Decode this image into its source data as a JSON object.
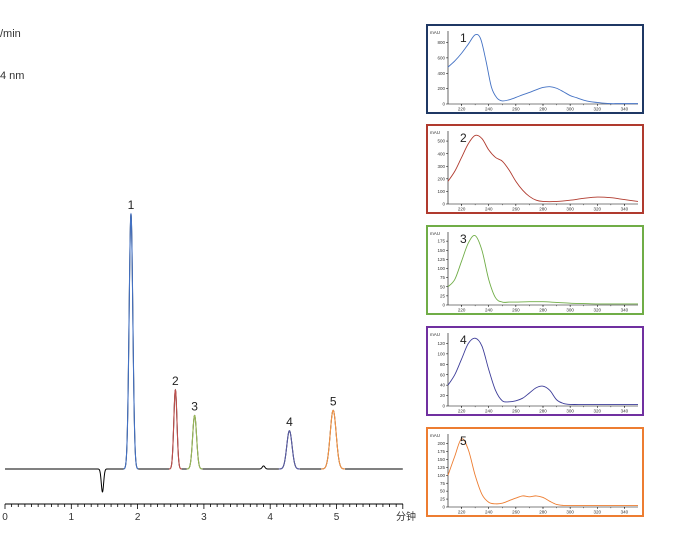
{
  "header_fragments": [
    "/min",
    "4 nm"
  ],
  "chart_data": [
    {
      "type": "line",
      "xunit": "分钟",
      "xlim": [
        0,
        6
      ],
      "xticks": [
        0,
        1,
        2,
        3,
        4,
        5
      ],
      "peaks": [
        {
          "label": "1",
          "rt": 1.9,
          "height": 1.0,
          "width": 0.028,
          "color": "#4472c4"
        },
        {
          "label": "2",
          "rt": 2.57,
          "height": 0.31,
          "width": 0.024,
          "color": "#c0504d"
        },
        {
          "label": "3",
          "rt": 2.86,
          "height": 0.21,
          "width": 0.03,
          "color": "#9bbb59"
        },
        {
          "label": "4",
          "rt": 4.29,
          "height": 0.15,
          "width": 0.04,
          "color": "#5b5ea6"
        },
        {
          "label": "5",
          "rt": 4.95,
          "height": 0.23,
          "width": 0.045,
          "color": "#f79646"
        }
      ],
      "baseline_color": "#000000"
    },
    {
      "type": "line",
      "label": "1",
      "color": "#4472c4",
      "border": "#1f3864",
      "xlim": [
        210,
        350
      ],
      "ylabel": "mAU",
      "yticks": [
        0,
        200,
        400,
        600,
        800
      ],
      "ylim": [
        0,
        950
      ],
      "xticks": [
        220,
        240,
        260,
        280,
        300,
        320,
        340
      ],
      "x": [
        210,
        215,
        220,
        225,
        230,
        234,
        238,
        242,
        246,
        250,
        255,
        260,
        265,
        270,
        275,
        280,
        285,
        290,
        295,
        300,
        305,
        310,
        315,
        320,
        325,
        330,
        335,
        340,
        345,
        350
      ],
      "y": [
        480,
        560,
        660,
        780,
        900,
        850,
        560,
        220,
        80,
        40,
        55,
        85,
        120,
        150,
        185,
        215,
        225,
        205,
        160,
        110,
        80,
        50,
        30,
        20,
        10,
        5,
        5,
        5,
        5,
        5
      ]
    },
    {
      "type": "line",
      "label": "2",
      "color": "#b03a2e",
      "border": "#b03a2e",
      "xlim": [
        210,
        350
      ],
      "ylabel": "mAU",
      "yticks": [
        0,
        100,
        200,
        300,
        400,
        500
      ],
      "ylim": [
        0,
        580
      ],
      "xticks": [
        220,
        240,
        260,
        280,
        300,
        320,
        340
      ],
      "x": [
        210,
        215,
        220,
        225,
        230,
        235,
        240,
        245,
        250,
        255,
        260,
        265,
        270,
        275,
        280,
        290,
        300,
        310,
        320,
        330,
        340,
        350
      ],
      "y": [
        180,
        260,
        370,
        480,
        545,
        520,
        430,
        370,
        340,
        270,
        180,
        110,
        60,
        30,
        20,
        20,
        30,
        45,
        55,
        50,
        35,
        20
      ]
    },
    {
      "type": "line",
      "label": "3",
      "color": "#70ad47",
      "border": "#70ad47",
      "xlim": [
        210,
        350
      ],
      "ylabel": "mAU",
      "yticks": [
        0,
        25,
        50,
        75,
        100,
        125,
        150,
        175
      ],
      "ylim": [
        0,
        200
      ],
      "xticks": [
        220,
        240,
        260,
        280,
        300,
        320,
        340
      ],
      "x": [
        210,
        215,
        220,
        225,
        230,
        235,
        240,
        245,
        250,
        255,
        260,
        270,
        280,
        290,
        300,
        310,
        320,
        330,
        340,
        350
      ],
      "y": [
        50,
        70,
        120,
        170,
        190,
        150,
        70,
        20,
        8,
        8,
        8,
        9,
        9,
        7,
        5,
        4,
        3,
        3,
        3,
        3
      ]
    },
    {
      "type": "line",
      "label": "4",
      "color": "#3d3d99",
      "border": "#7030a0",
      "xlim": [
        210,
        350
      ],
      "ylabel": "mAU",
      "yticks": [
        0,
        20,
        40,
        60,
        80,
        100,
        120
      ],
      "ylim": [
        0,
        140
      ],
      "xticks": [
        220,
        240,
        260,
        280,
        300,
        320,
        340
      ],
      "x": [
        210,
        215,
        220,
        225,
        230,
        235,
        240,
        245,
        250,
        255,
        260,
        265,
        270,
        275,
        280,
        285,
        290,
        295,
        300,
        310,
        320,
        330,
        340,
        350
      ],
      "y": [
        40,
        60,
        90,
        120,
        130,
        115,
        70,
        30,
        10,
        8,
        10,
        15,
        25,
        35,
        38,
        30,
        12,
        5,
        3,
        3,
        3,
        3,
        3,
        3
      ]
    },
    {
      "type": "line",
      "label": "5",
      "color": "#ed7d31",
      "border": "#ed7d31",
      "xlim": [
        210,
        350
      ],
      "ylabel": "mAU",
      "yticks": [
        0,
        25,
        50,
        75,
        100,
        125,
        150,
        175,
        200
      ],
      "ylim": [
        0,
        230
      ],
      "xticks": [
        220,
        240,
        260,
        280,
        300,
        320,
        340
      ],
      "x": [
        210,
        215,
        220,
        225,
        230,
        235,
        240,
        245,
        250,
        255,
        260,
        265,
        270,
        275,
        280,
        285,
        290,
        295,
        300,
        310,
        320,
        330,
        340,
        350
      ],
      "y": [
        100,
        160,
        215,
        180,
        100,
        40,
        15,
        10,
        12,
        20,
        28,
        35,
        32,
        35,
        30,
        18,
        8,
        5,
        5,
        5,
        5,
        5,
        5,
        5
      ]
    }
  ]
}
